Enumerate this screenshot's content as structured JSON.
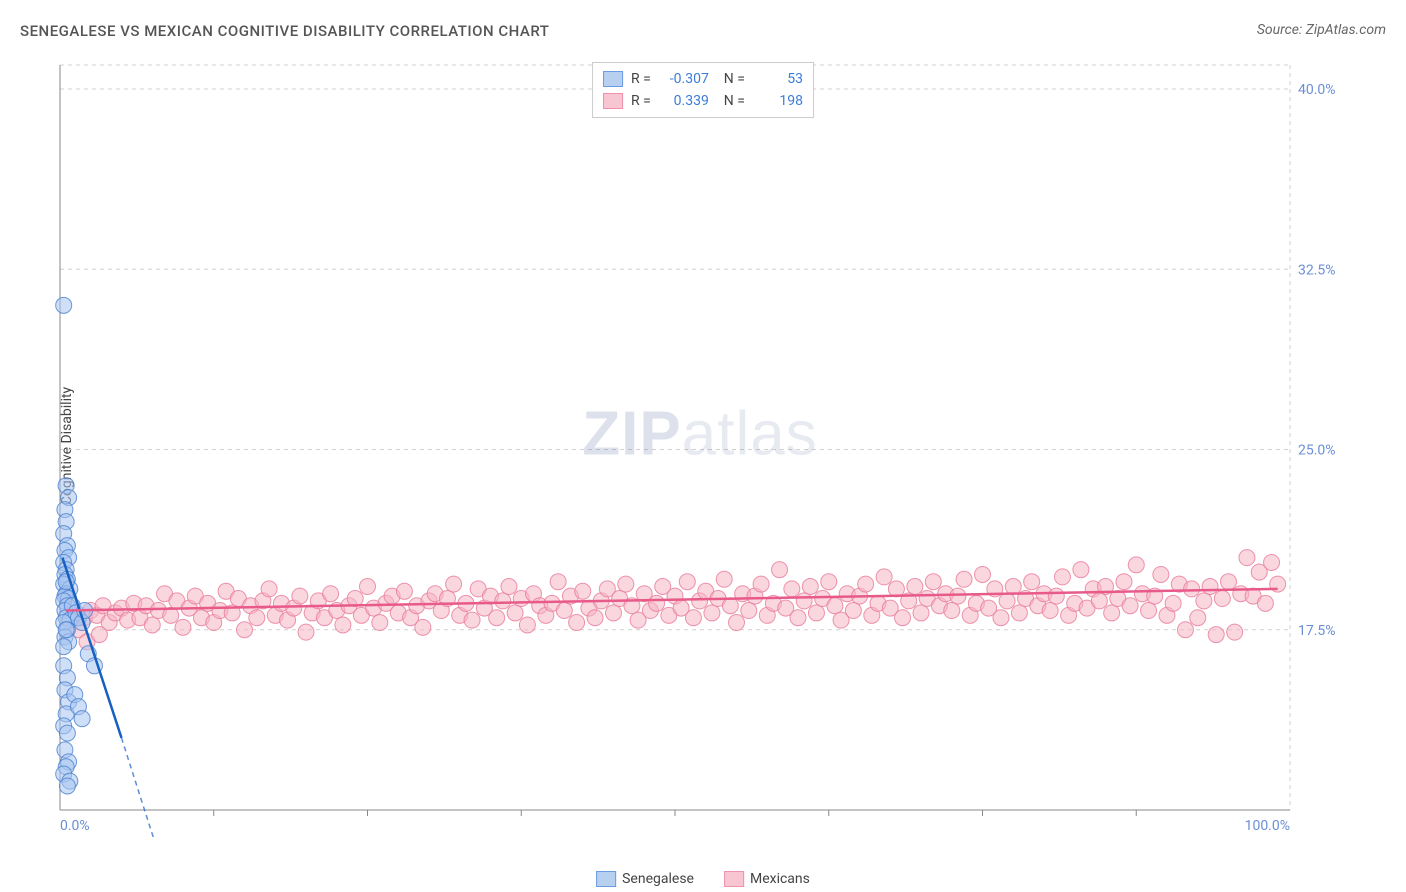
{
  "title": "SENEGALESE VS MEXICAN COGNITIVE DISABILITY CORRELATION CHART",
  "source": "Source: ZipAtlas.com",
  "y_axis_label": "Cognitive Disability",
  "watermark_bold": "ZIP",
  "watermark_light": "atlas",
  "chart": {
    "type": "scatter",
    "background_color": "#ffffff",
    "grid_color": "#d0d0d0",
    "axis_line_color": "#888888",
    "xlim": [
      0,
      100
    ],
    "ylim": [
      10,
      41
    ],
    "x_ticks": [
      0,
      100
    ],
    "x_tick_labels": [
      "0.0%",
      "100.0%"
    ],
    "x_minor_ticks": [
      12.5,
      25,
      37.5,
      50,
      62.5,
      75,
      87.5
    ],
    "y_ticks": [
      17.5,
      25.0,
      32.5,
      40.0
    ],
    "y_tick_labels": [
      "17.5%",
      "25.0%",
      "32.5%",
      "40.0%"
    ],
    "y_tick_color": "#6b8fd6",
    "x_tick_color": "#6b8fd6",
    "marker_radius": 8,
    "marker_opacity": 0.55,
    "series": [
      {
        "name": "Senegalese",
        "label": "Senegalese",
        "color_fill": "#a7c5f0",
        "color_stroke": "#4a7fd0",
        "swatch_fill": "#b8d0f0",
        "swatch_stroke": "#6b9be0",
        "R": "-0.307",
        "N": "53",
        "trend": {
          "x1": 0.2,
          "y1": 20.5,
          "x2": 5.0,
          "y2": 13.0,
          "color": "#1560c0",
          "width": 2.5,
          "dash_extend_x": 10.0,
          "dash_extend_y": 5.0
        },
        "points": [
          [
            0.3,
            31.0
          ],
          [
            0.5,
            23.5
          ],
          [
            0.7,
            23.0
          ],
          [
            0.4,
            22.5
          ],
          [
            0.5,
            22.0
          ],
          [
            0.3,
            21.5
          ],
          [
            0.6,
            21.0
          ],
          [
            0.4,
            20.8
          ],
          [
            0.7,
            20.5
          ],
          [
            0.3,
            20.3
          ],
          [
            0.5,
            20.0
          ],
          [
            0.4,
            19.8
          ],
          [
            0.6,
            19.6
          ],
          [
            0.3,
            19.4
          ],
          [
            0.8,
            19.2
          ],
          [
            0.5,
            19.0
          ],
          [
            0.4,
            18.9
          ],
          [
            0.7,
            18.8
          ],
          [
            0.3,
            18.7
          ],
          [
            0.6,
            18.5
          ],
          [
            0.4,
            18.3
          ],
          [
            0.5,
            18.0
          ],
          [
            0.8,
            17.9
          ],
          [
            0.3,
            17.8
          ],
          [
            0.6,
            17.5
          ],
          [
            0.4,
            17.2
          ],
          [
            0.7,
            17.0
          ],
          [
            0.5,
            17.5
          ],
          [
            0.3,
            16.8
          ],
          [
            1.0,
            18.5
          ],
          [
            1.3,
            18.2
          ],
          [
            1.5,
            18.0
          ],
          [
            1.8,
            17.8
          ],
          [
            2.0,
            18.3
          ],
          [
            2.3,
            16.5
          ],
          [
            2.8,
            16.0
          ],
          [
            0.5,
            19.5
          ],
          [
            0.3,
            16.0
          ],
          [
            0.6,
            15.5
          ],
          [
            0.4,
            15.0
          ],
          [
            0.7,
            14.5
          ],
          [
            0.5,
            14.0
          ],
          [
            0.3,
            13.5
          ],
          [
            0.6,
            13.2
          ],
          [
            0.4,
            12.5
          ],
          [
            0.7,
            12.0
          ],
          [
            0.5,
            11.8
          ],
          [
            0.3,
            11.5
          ],
          [
            0.8,
            11.2
          ],
          [
            0.6,
            11.0
          ],
          [
            1.2,
            14.8
          ],
          [
            1.5,
            14.3
          ],
          [
            1.8,
            13.8
          ]
        ]
      },
      {
        "name": "Mexicans",
        "label": "Mexicans",
        "color_fill": "#f5b5c5",
        "color_stroke": "#e87a9a",
        "swatch_fill": "#f8c5d2",
        "swatch_stroke": "#f090aa",
        "R": "0.339",
        "N": "198",
        "trend": {
          "x1": 0.5,
          "y1": 18.3,
          "x2": 99.0,
          "y2": 19.2,
          "color": "#e85a8a",
          "width": 2.5
        },
        "points": [
          [
            2.0,
            18.0
          ],
          [
            2.5,
            18.3
          ],
          [
            3.0,
            18.1
          ],
          [
            3.5,
            18.5
          ],
          [
            4.0,
            17.8
          ],
          [
            4.5,
            18.2
          ],
          [
            5.0,
            18.4
          ],
          [
            5.5,
            17.9
          ],
          [
            6.0,
            18.6
          ],
          [
            6.5,
            18.0
          ],
          [
            7.0,
            18.5
          ],
          [
            7.5,
            17.7
          ],
          [
            8.0,
            18.3
          ],
          [
            8.5,
            19.0
          ],
          [
            9.0,
            18.1
          ],
          [
            9.5,
            18.7
          ],
          [
            10.0,
            17.6
          ],
          [
            10.5,
            18.4
          ],
          [
            11.0,
            18.9
          ],
          [
            11.5,
            18.0
          ],
          [
            12.0,
            18.6
          ],
          [
            12.5,
            17.8
          ],
          [
            13.0,
            18.3
          ],
          [
            13.5,
            19.1
          ],
          [
            14.0,
            18.2
          ],
          [
            14.5,
            18.8
          ],
          [
            15.0,
            17.5
          ],
          [
            15.5,
            18.5
          ],
          [
            16.0,
            18.0
          ],
          [
            16.5,
            18.7
          ],
          [
            17.0,
            19.2
          ],
          [
            17.5,
            18.1
          ],
          [
            18.0,
            18.6
          ],
          [
            18.5,
            17.9
          ],
          [
            19.0,
            18.4
          ],
          [
            19.5,
            18.9
          ],
          [
            20.0,
            17.4
          ],
          [
            20.5,
            18.2
          ],
          [
            21.0,
            18.7
          ],
          [
            21.5,
            18.0
          ],
          [
            22.0,
            19.0
          ],
          [
            22.5,
            18.3
          ],
          [
            23.0,
            17.7
          ],
          [
            23.5,
            18.5
          ],
          [
            24.0,
            18.8
          ],
          [
            24.5,
            18.1
          ],
          [
            25.0,
            19.3
          ],
          [
            25.5,
            18.4
          ],
          [
            26.0,
            17.8
          ],
          [
            26.5,
            18.6
          ],
          [
            27.0,
            18.9
          ],
          [
            27.5,
            18.2
          ],
          [
            28.0,
            19.1
          ],
          [
            28.5,
            18.0
          ],
          [
            29.0,
            18.5
          ],
          [
            29.5,
            17.6
          ],
          [
            30.0,
            18.7
          ],
          [
            30.5,
            19.0
          ],
          [
            31.0,
            18.3
          ],
          [
            31.5,
            18.8
          ],
          [
            32.0,
            19.4
          ],
          [
            32.5,
            18.1
          ],
          [
            33.0,
            18.6
          ],
          [
            33.5,
            17.9
          ],
          [
            34.0,
            19.2
          ],
          [
            34.5,
            18.4
          ],
          [
            35.0,
            18.9
          ],
          [
            35.5,
            18.0
          ],
          [
            36.0,
            18.7
          ],
          [
            36.5,
            19.3
          ],
          [
            37.0,
            18.2
          ],
          [
            37.5,
            18.8
          ],
          [
            38.0,
            17.7
          ],
          [
            38.5,
            19.0
          ],
          [
            39.0,
            18.5
          ],
          [
            39.5,
            18.1
          ],
          [
            40.0,
            18.6
          ],
          [
            40.5,
            19.5
          ],
          [
            41.0,
            18.3
          ],
          [
            41.5,
            18.9
          ],
          [
            42.0,
            17.8
          ],
          [
            42.5,
            19.1
          ],
          [
            43.0,
            18.4
          ],
          [
            43.5,
            18.0
          ],
          [
            44.0,
            18.7
          ],
          [
            44.5,
            19.2
          ],
          [
            45.0,
            18.2
          ],
          [
            45.5,
            18.8
          ],
          [
            46.0,
            19.4
          ],
          [
            46.5,
            18.5
          ],
          [
            47.0,
            17.9
          ],
          [
            47.5,
            19.0
          ],
          [
            48.0,
            18.3
          ],
          [
            48.5,
            18.6
          ],
          [
            49.0,
            19.3
          ],
          [
            49.5,
            18.1
          ],
          [
            50.0,
            18.9
          ],
          [
            50.5,
            18.4
          ],
          [
            51.0,
            19.5
          ],
          [
            51.5,
            18.0
          ],
          [
            52.0,
            18.7
          ],
          [
            52.5,
            19.1
          ],
          [
            53.0,
            18.2
          ],
          [
            53.5,
            18.8
          ],
          [
            54.0,
            19.6
          ],
          [
            54.5,
            18.5
          ],
          [
            55.0,
            17.8
          ],
          [
            55.5,
            19.0
          ],
          [
            56.0,
            18.3
          ],
          [
            56.5,
            18.9
          ],
          [
            57.0,
            19.4
          ],
          [
            57.5,
            18.1
          ],
          [
            58.0,
            18.6
          ],
          [
            58.5,
            20.0
          ],
          [
            59.0,
            18.4
          ],
          [
            59.5,
            19.2
          ],
          [
            60.0,
            18.0
          ],
          [
            60.5,
            18.7
          ],
          [
            61.0,
            19.3
          ],
          [
            61.5,
            18.2
          ],
          [
            62.0,
            18.8
          ],
          [
            62.5,
            19.5
          ],
          [
            63.0,
            18.5
          ],
          [
            63.5,
            17.9
          ],
          [
            64.0,
            19.0
          ],
          [
            64.5,
            18.3
          ],
          [
            65.0,
            18.9
          ],
          [
            65.5,
            19.4
          ],
          [
            66.0,
            18.1
          ],
          [
            66.5,
            18.6
          ],
          [
            67.0,
            19.7
          ],
          [
            67.5,
            18.4
          ],
          [
            68.0,
            19.2
          ],
          [
            68.5,
            18.0
          ],
          [
            69.0,
            18.7
          ],
          [
            69.5,
            19.3
          ],
          [
            70.0,
            18.2
          ],
          [
            70.5,
            18.8
          ],
          [
            71.0,
            19.5
          ],
          [
            71.5,
            18.5
          ],
          [
            72.0,
            19.0
          ],
          [
            72.5,
            18.3
          ],
          [
            73.0,
            18.9
          ],
          [
            73.5,
            19.6
          ],
          [
            74.0,
            18.1
          ],
          [
            74.5,
            18.6
          ],
          [
            75.0,
            19.8
          ],
          [
            75.5,
            18.4
          ],
          [
            76.0,
            19.2
          ],
          [
            76.5,
            18.0
          ],
          [
            77.0,
            18.7
          ],
          [
            77.5,
            19.3
          ],
          [
            78.0,
            18.2
          ],
          [
            78.5,
            18.8
          ],
          [
            79.0,
            19.5
          ],
          [
            79.5,
            18.5
          ],
          [
            80.0,
            19.0
          ],
          [
            80.5,
            18.3
          ],
          [
            81.0,
            18.9
          ],
          [
            81.5,
            19.7
          ],
          [
            82.0,
            18.1
          ],
          [
            82.5,
            18.6
          ],
          [
            83.0,
            20.0
          ],
          [
            83.5,
            18.4
          ],
          [
            84.0,
            19.2
          ],
          [
            84.5,
            18.7
          ],
          [
            85.0,
            19.3
          ],
          [
            85.5,
            18.2
          ],
          [
            86.0,
            18.8
          ],
          [
            86.5,
            19.5
          ],
          [
            87.0,
            18.5
          ],
          [
            87.5,
            20.2
          ],
          [
            88.0,
            19.0
          ],
          [
            88.5,
            18.3
          ],
          [
            89.0,
            18.9
          ],
          [
            89.5,
            19.8
          ],
          [
            90.0,
            18.1
          ],
          [
            90.5,
            18.6
          ],
          [
            91.0,
            19.4
          ],
          [
            91.5,
            17.5
          ],
          [
            92.0,
            19.2
          ],
          [
            92.5,
            18.0
          ],
          [
            93.0,
            18.7
          ],
          [
            93.5,
            19.3
          ],
          [
            94.0,
            17.3
          ],
          [
            94.5,
            18.8
          ],
          [
            95.0,
            19.5
          ],
          [
            95.5,
            17.4
          ],
          [
            96.0,
            19.0
          ],
          [
            96.5,
            20.5
          ],
          [
            97.0,
            18.9
          ],
          [
            97.5,
            19.9
          ],
          [
            98.0,
            18.6
          ],
          [
            98.5,
            20.3
          ],
          [
            99.0,
            19.4
          ],
          [
            1.5,
            17.5
          ],
          [
            2.2,
            17.0
          ],
          [
            3.2,
            17.3
          ]
        ]
      }
    ]
  }
}
